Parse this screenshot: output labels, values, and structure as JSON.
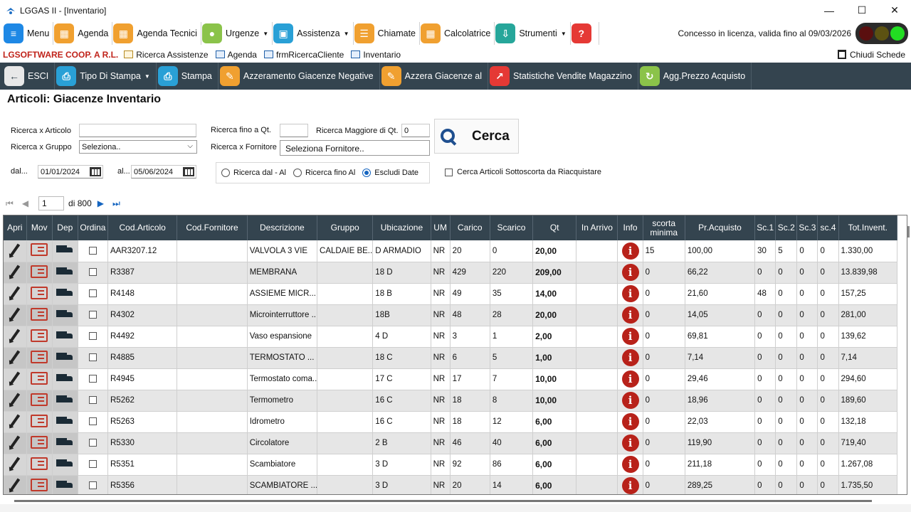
{
  "window": {
    "title": "LGGAS II - [Inventario]",
    "minimize": "—",
    "maximize": "☐",
    "close": "✕"
  },
  "toolbar_main": {
    "items": [
      {
        "label": "Menu",
        "icon": "menu-icon",
        "color": "#1e88e5",
        "glyph": "≡"
      },
      {
        "label": "Agenda",
        "icon": "agenda-icon",
        "color": "#f0a030",
        "glyph": "▦"
      },
      {
        "label": "Agenda Tecnici",
        "icon": "calendar-icon",
        "color": "#f0a030",
        "glyph": "▦"
      },
      {
        "label": "Urgenze",
        "icon": "bulb-icon",
        "color": "#8bc34a",
        "glyph": "●",
        "dropdown": true
      },
      {
        "label": "Assistenza",
        "icon": "monitor-icon",
        "color": "#29a0d6",
        "glyph": "▣",
        "dropdown": true
      },
      {
        "label": "Chiamate",
        "icon": "notes-icon",
        "color": "#f0a030",
        "glyph": "☰"
      },
      {
        "label": "Calcolatrice",
        "icon": "calculator-icon",
        "color": "#f0a030",
        "glyph": "▦"
      },
      {
        "label": "Strumenti",
        "icon": "download-icon",
        "color": "#26a69a",
        "glyph": "⇩",
        "dropdown": true
      },
      {
        "label": "",
        "icon": "help-icon",
        "color": "#e53935",
        "glyph": "?"
      }
    ],
    "license": "Concesso in licenza, valida fino al 09/03/2026",
    "traffic_light": [
      "#5a0f0f",
      "#5c5212",
      "#22dd22"
    ]
  },
  "tabs": {
    "brand": "LGSOFTWARE COOP. A R.L.",
    "items": [
      "Ricerca Assistenze",
      "Agenda",
      "frmRicercaCliente",
      "Inventario"
    ],
    "close_all": "Chiudi Schede"
  },
  "toolbar_actions": {
    "items": [
      {
        "label": "ESCI",
        "icon": "back-arrow-icon",
        "color": "#e8e8e8",
        "glyph": "←",
        "fg": "#34444f"
      },
      {
        "label": "Tipo Di Stampa",
        "icon": "printer-icon",
        "color": "#29a0d6",
        "glyph": "⎙",
        "dropdown": true
      },
      {
        "label": "Stampa",
        "icon": "print-icon",
        "color": "#29a0d6",
        "glyph": "⎙"
      },
      {
        "label": "Azzeramento Giacenze Negative",
        "icon": "wand-icon",
        "color": "#f0a030",
        "glyph": "✎"
      },
      {
        "label": "Azzera Giacenze al",
        "icon": "wand-icon",
        "color": "#f0a030",
        "glyph": "✎"
      },
      {
        "label": "Statistiche Vendite Magazzino",
        "icon": "chart-icon",
        "color": "#e53935",
        "glyph": "↗"
      },
      {
        "label": "Agg.Prezzo Acquisto",
        "icon": "refresh-icon",
        "color": "#8bc34a",
        "glyph": "↻"
      }
    ]
  },
  "page": {
    "title": "Articoli: Giacenze Inventario"
  },
  "filters": {
    "articolo_label": "Ricerca x Articolo",
    "articolo_value": "",
    "gruppo_label": "Ricerca x Gruppo",
    "gruppo_value": "Seleziona..",
    "qt_fino_label": "Ricerca fino a Qt.",
    "qt_fino_value": "",
    "qt_maggiore_label": "Ricerca Maggiore di Qt.",
    "qt_maggiore_value": "0",
    "fornitore_label": "Ricerca x Fornitore",
    "fornitore_value": "Seleziona Fornitore..",
    "dal_label": "dal...",
    "dal_value": "01/01/2024",
    "al_label": "al...",
    "al_value": "05/06/2024",
    "cerca_label": "Cerca",
    "radio": [
      {
        "label": "Ricerca dal - Al",
        "checked": false
      },
      {
        "label": "Ricerca fino Al",
        "checked": false
      },
      {
        "label": "Escludi Date",
        "checked": true
      }
    ],
    "sottoscorta_label": "Cerca Articoli Sottoscorta da Riacquistare"
  },
  "pager": {
    "page": "1",
    "of": "di 800"
  },
  "table": {
    "columns": [
      "Apri",
      "Mov",
      "Dep",
      "Ordina",
      "Cod.Articolo",
      "Cod.Fornitore",
      "Descrizione",
      "Gruppo",
      "Ubicazione",
      "UM",
      "Carico",
      "Scarico",
      "Qt",
      "In Arrivo",
      "Info",
      "scorta minima",
      "Pr.Acquisto",
      "Sc.1",
      "Sc.2",
      "Sc.3",
      "sc.4",
      "Tot.Invent."
    ],
    "rows": [
      {
        "cod": "AAR3207.12",
        "codf": "",
        "desc": "VALVOLA 3 VIE",
        "gruppo": "CALDAIE BE...",
        "ubic": "D ARMADIO",
        "um": "NR",
        "carico": "20",
        "scarico": "0",
        "qt": "20,00",
        "arrivo": "",
        "scorta": "15",
        "prezzo": "100,00",
        "sc1": "30",
        "sc2": "5",
        "sc3": "0",
        "sc4": "0",
        "tot": "1.330,00"
      },
      {
        "cod": "R3387",
        "codf": "",
        "desc": "MEMBRANA",
        "gruppo": "",
        "ubic": "18 D",
        "um": "NR",
        "carico": "429",
        "scarico": "220",
        "qt": "209,00",
        "arrivo": "",
        "scorta": "0",
        "prezzo": "66,22",
        "sc1": "0",
        "sc2": "0",
        "sc3": "0",
        "sc4": "0",
        "tot": "13.839,98"
      },
      {
        "cod": "R4148",
        "codf": "",
        "desc": "ASSIEME MICR...",
        "gruppo": "",
        "ubic": "18 B",
        "um": "NR",
        "carico": "49",
        "scarico": "35",
        "qt": "14,00",
        "arrivo": "",
        "scorta": "0",
        "prezzo": "21,60",
        "sc1": "48",
        "sc2": "0",
        "sc3": "0",
        "sc4": "0",
        "tot": "157,25"
      },
      {
        "cod": "R4302",
        "codf": "",
        "desc": "Microinterruttore ...",
        "gruppo": "",
        "ubic": "18B",
        "um": "NR",
        "carico": "48",
        "scarico": "28",
        "qt": "20,00",
        "arrivo": "",
        "scorta": "0",
        "prezzo": "14,05",
        "sc1": "0",
        "sc2": "0",
        "sc3": "0",
        "sc4": "0",
        "tot": "281,00"
      },
      {
        "cod": "R4492",
        "codf": "",
        "desc": "Vaso espansione",
        "gruppo": "",
        "ubic": "4 D",
        "um": "NR",
        "carico": "3",
        "scarico": "1",
        "qt": "2,00",
        "arrivo": "",
        "scorta": "0",
        "prezzo": "69,81",
        "sc1": "0",
        "sc2": "0",
        "sc3": "0",
        "sc4": "0",
        "tot": "139,62"
      },
      {
        "cod": "R4885",
        "codf": "",
        "desc": "TERMOSTATO ...",
        "gruppo": "",
        "ubic": "18 C",
        "um": "NR",
        "carico": "6",
        "scarico": "5",
        "qt": "1,00",
        "arrivo": "",
        "scorta": "0",
        "prezzo": "7,14",
        "sc1": "0",
        "sc2": "0",
        "sc3": "0",
        "sc4": "0",
        "tot": "7,14"
      },
      {
        "cod": "R4945",
        "codf": "",
        "desc": "Termostato coma...",
        "gruppo": "",
        "ubic": "17 C",
        "um": "NR",
        "carico": "17",
        "scarico": "7",
        "qt": "10,00",
        "arrivo": "",
        "scorta": "0",
        "prezzo": "29,46",
        "sc1": "0",
        "sc2": "0",
        "sc3": "0",
        "sc4": "0",
        "tot": "294,60"
      },
      {
        "cod": "R5262",
        "codf": "",
        "desc": "Termometro",
        "gruppo": "",
        "ubic": "16 C",
        "um": "NR",
        "carico": "18",
        "scarico": "8",
        "qt": "10,00",
        "arrivo": "",
        "scorta": "0",
        "prezzo": "18,96",
        "sc1": "0",
        "sc2": "0",
        "sc3": "0",
        "sc4": "0",
        "tot": "189,60"
      },
      {
        "cod": "R5263",
        "codf": "",
        "desc": "Idrometro",
        "gruppo": "",
        "ubic": "16 C",
        "um": "NR",
        "carico": "18",
        "scarico": "12",
        "qt": "6,00",
        "arrivo": "",
        "scorta": "0",
        "prezzo": "22,03",
        "sc1": "0",
        "sc2": "0",
        "sc3": "0",
        "sc4": "0",
        "tot": "132,18"
      },
      {
        "cod": "R5330",
        "codf": "",
        "desc": "Circolatore",
        "gruppo": "",
        "ubic": "2 B",
        "um": "NR",
        "carico": "46",
        "scarico": "40",
        "qt": "6,00",
        "arrivo": "",
        "scorta": "0",
        "prezzo": "119,90",
        "sc1": "0",
        "sc2": "0",
        "sc3": "0",
        "sc4": "0",
        "tot": "719,40"
      },
      {
        "cod": "R5351",
        "codf": "",
        "desc": "Scambiatore",
        "gruppo": "",
        "ubic": "3 D",
        "um": "NR",
        "carico": "92",
        "scarico": "86",
        "qt": "6,00",
        "arrivo": "",
        "scorta": "0",
        "prezzo": "211,18",
        "sc1": "0",
        "sc2": "0",
        "sc3": "0",
        "sc4": "0",
        "tot": "1.267,08"
      },
      {
        "cod": "R5356",
        "codf": "",
        "desc": "SCAMBIATORE ...",
        "gruppo": "",
        "ubic": "3 D",
        "um": "NR",
        "carico": "20",
        "scarico": "14",
        "qt": "6,00",
        "arrivo": "",
        "scorta": "0",
        "prezzo": "289,25",
        "sc1": "0",
        "sc2": "0",
        "sc3": "0",
        "sc4": "0",
        "tot": "1.735,50"
      }
    ]
  }
}
